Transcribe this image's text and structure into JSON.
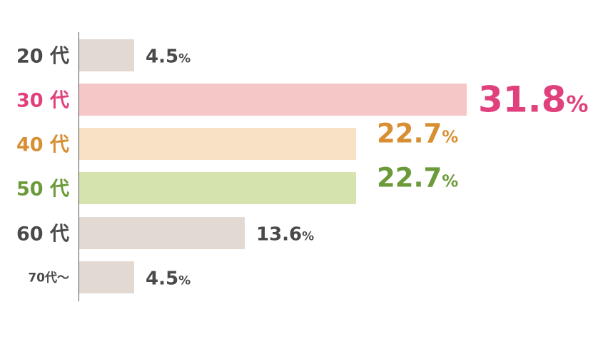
{
  "chart_data": {
    "type": "bar",
    "orientation": "horizontal",
    "title": "",
    "xlabel": "",
    "ylabel": "",
    "categories": [
      "20 代",
      "30 代",
      "40 代",
      "50 代",
      "60 代",
      "70代～"
    ],
    "values": [
      4.5,
      31.8,
      22.7,
      22.7,
      13.6,
      4.5
    ],
    "value_labels": [
      "4.5",
      "31.8",
      "22.7",
      "22.7",
      "13.6",
      "4.5"
    ],
    "unit": "%",
    "xlim": [
      0,
      31.8
    ],
    "grid": false,
    "legend": "none",
    "bar_colors": [
      "#e2d9d3",
      "#f6c7c7",
      "#f8e2c6",
      "#d5e4ae",
      "#e2d9d3",
      "#e2d9d3"
    ],
    "label_colors": [
      "#4a4a4a",
      "#e0417c",
      "#d88f32",
      "#6c9a3a",
      "#4a4a4a",
      "#4a4a4a"
    ],
    "highlight": [
      false,
      true,
      false,
      false,
      false,
      false
    ],
    "emphasis": [
      "normal",
      "large",
      "medium",
      "medium",
      "normal",
      "normal"
    ]
  }
}
